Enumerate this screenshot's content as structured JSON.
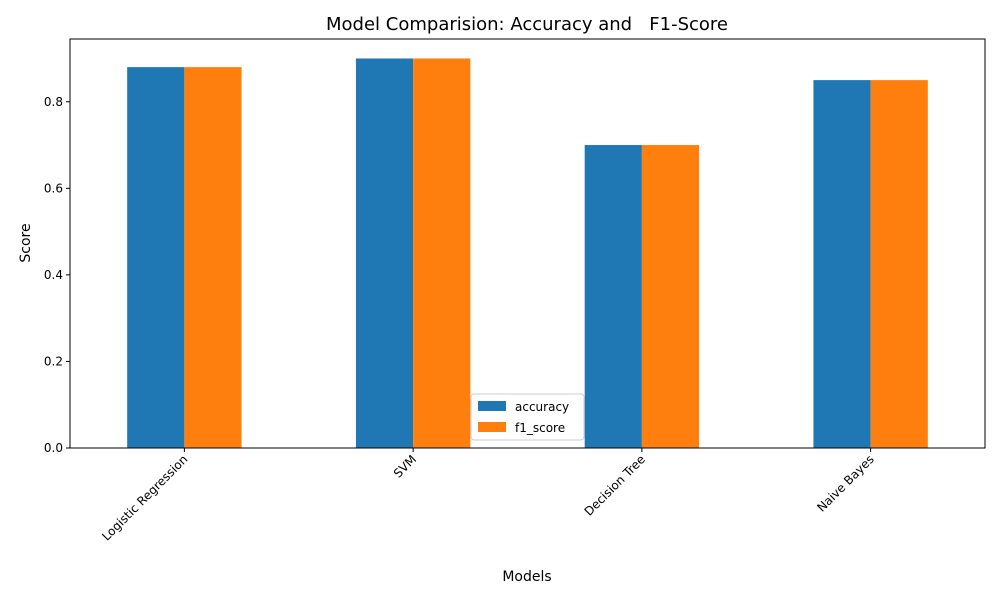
{
  "chart_data": {
    "type": "bar",
    "title": "Model Comparision: Accuracy and   F1-Score",
    "xlabel": "Models",
    "ylabel": "Score",
    "categories": [
      "Logistic Regression",
      "SVM",
      "Decision Tree",
      "Naive Bayes"
    ],
    "series": [
      {
        "name": "accuracy",
        "values": [
          0.88,
          0.9,
          0.7,
          0.85
        ],
        "color": "#1f77b4"
      },
      {
        "name": "f1_score",
        "values": [
          0.88,
          0.9,
          0.7,
          0.85
        ],
        "color": "#ff7f0e"
      }
    ],
    "ylim": [
      0,
      0.945
    ],
    "yticks": [
      0.0,
      0.2,
      0.4,
      0.6,
      0.8
    ],
    "ytick_labels": [
      "0.0",
      "0.2",
      "0.4",
      "0.6",
      "0.8"
    ],
    "grid": false,
    "legend_position": "lower-center"
  }
}
